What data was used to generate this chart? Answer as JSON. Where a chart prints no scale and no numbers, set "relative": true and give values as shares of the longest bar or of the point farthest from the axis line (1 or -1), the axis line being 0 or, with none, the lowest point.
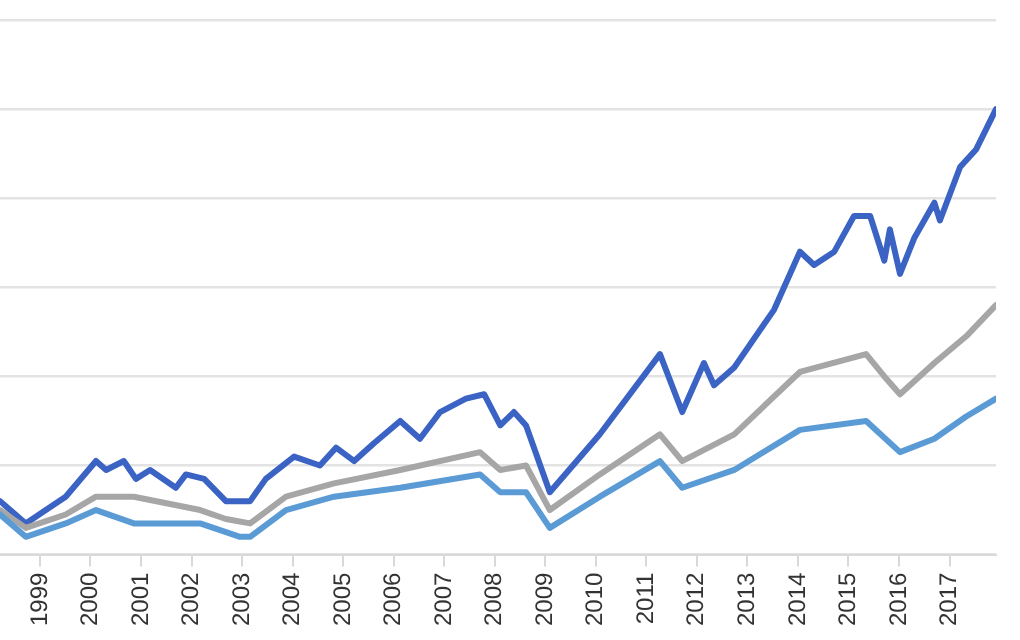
{
  "chart_data": {
    "type": "line",
    "relative": true,
    "grid": "y",
    "legend": false,
    "marker": "none",
    "line_style": "solid",
    "xlim": [
      1998.21,
      2017.92
    ],
    "xticks": [
      1999,
      2000,
      2001,
      2002,
      2003,
      2004,
      2005,
      2006,
      2007,
      2008,
      2009,
      2010,
      2011,
      2012,
      2013,
      2014,
      2015,
      2016,
      2017
    ],
    "series": [
      {
        "color": "#3b63c4",
        "x": [
          1998.21,
          1998.72,
          1999.51,
          2000.11,
          2000.31,
          2000.66,
          2000.9,
          2001.18,
          2001.69,
          2001.89,
          2002.25,
          2002.68,
          2003.16,
          2003.47,
          2004.03,
          2004.54,
          2004.86,
          2005.22,
          2005.61,
          2006.13,
          2006.52,
          2006.92,
          2007.43,
          2007.79,
          2008.11,
          2008.38,
          2008.62,
          2009.09,
          2010.08,
          2011.27,
          2011.71,
          2012.14,
          2012.34,
          2012.74,
          2013.53,
          2014.04,
          2014.32,
          2014.72,
          2015.11,
          2015.43,
          2015.71,
          2015.82,
          2016.02,
          2016.3,
          2016.7,
          2016.81,
          2017.21,
          2017.53,
          2017.92
        ],
        "values": [
          0.12,
          0.07,
          0.13,
          0.21,
          0.19,
          0.21,
          0.17,
          0.19,
          0.15,
          0.18,
          0.17,
          0.12,
          0.12,
          0.17,
          0.22,
          0.2,
          0.24,
          0.21,
          0.25,
          0.3,
          0.26,
          0.32,
          0.35,
          0.36,
          0.29,
          0.32,
          0.29,
          0.14,
          0.27,
          0.45,
          0.32,
          0.43,
          0.38,
          0.42,
          0.55,
          0.68,
          0.65,
          0.68,
          0.76,
          0.76,
          0.66,
          0.73,
          0.63,
          0.71,
          0.79,
          0.75,
          0.87,
          0.91,
          1
        ]
      },
      {
        "color": "#a6a6a6",
        "x": [
          1998.21,
          1998.72,
          1999.51,
          2000.11,
          2000.86,
          2002.17,
          2002.68,
          2003.16,
          2003.87,
          2004.82,
          2006.13,
          2007.71,
          2008.11,
          2008.62,
          2009.09,
          2010.08,
          2011.27,
          2011.71,
          2012.74,
          2014.04,
          2015.35,
          2015.71,
          2016.02,
          2016.7,
          2017.33,
          2017.92
        ],
        "values": [
          0.1,
          0.06,
          0.09,
          0.13,
          0.13,
          0.1,
          0.08,
          0.07,
          0.13,
          0.16,
          0.19,
          0.23,
          0.19,
          0.2,
          0.1,
          0.18,
          0.27,
          0.21,
          0.27,
          0.41,
          0.45,
          0.4,
          0.36,
          0.43,
          0.49,
          0.56
        ]
      },
      {
        "color": "#5b9bd5",
        "x": [
          1998.21,
          1998.72,
          1999.51,
          2000.11,
          2000.86,
          2002.17,
          2002.96,
          2003.16,
          2003.87,
          2004.82,
          2006.13,
          2007.71,
          2008.11,
          2008.62,
          2009.09,
          2010.08,
          2011.27,
          2011.71,
          2012.74,
          2014.04,
          2015.35,
          2016.02,
          2016.7,
          2017.33,
          2017.92
        ],
        "values": [
          0.09,
          0.04,
          0.07,
          0.1,
          0.07,
          0.07,
          0.04,
          0.04,
          0.1,
          0.13,
          0.15,
          0.18,
          0.14,
          0.14,
          0.06,
          0.13,
          0.21,
          0.15,
          0.19,
          0.28,
          0.3,
          0.23,
          0.26,
          0.31,
          0.35
        ]
      }
    ]
  }
}
